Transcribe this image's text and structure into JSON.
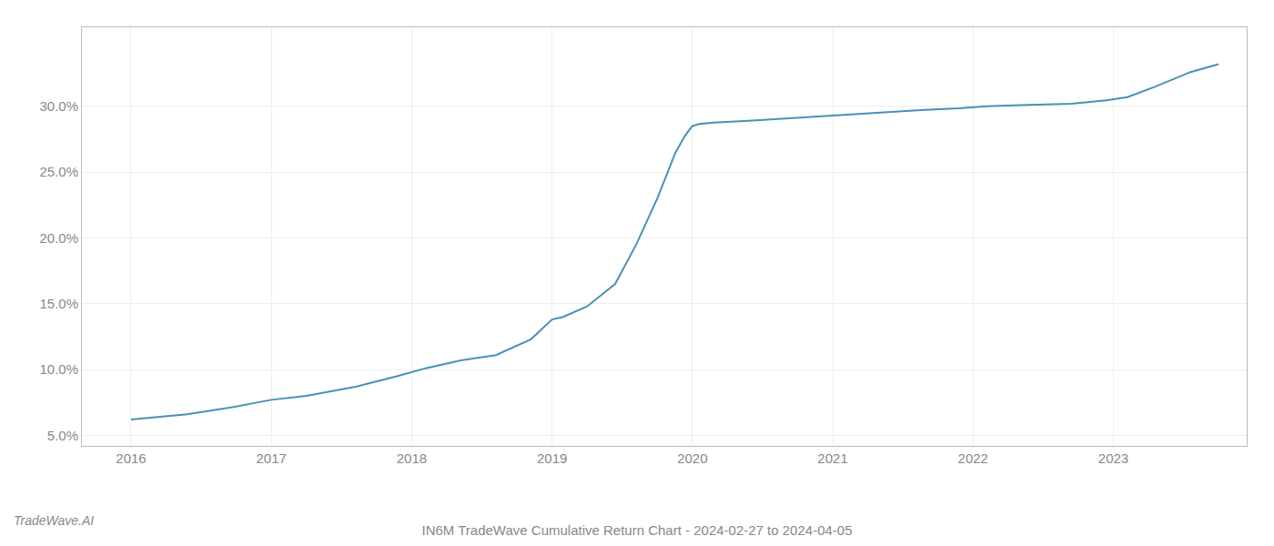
{
  "chart_data": {
    "type": "line",
    "title": "IN6M TradeWave Cumulative Return Chart - 2024-02-27 to 2024-04-05",
    "annotations": [
      {
        "text": "TradeWave.AI"
      }
    ],
    "x": [
      2016.0,
      2016.15,
      2016.4,
      2016.7,
      2017.0,
      2017.25,
      2017.6,
      2017.9,
      2018.1,
      2018.35,
      2018.6,
      2018.85,
      2019.0,
      2019.08,
      2019.25,
      2019.45,
      2019.6,
      2019.75,
      2019.88,
      2019.95,
      2020.0,
      2020.05,
      2020.15,
      2020.4,
      2020.7,
      2021.0,
      2021.3,
      2021.6,
      2021.9,
      2022.1,
      2022.4,
      2022.7,
      2022.95,
      2023.1,
      2023.3,
      2023.55,
      2023.75
    ],
    "values": [
      6.2,
      6.35,
      6.6,
      7.1,
      7.7,
      8.0,
      8.7,
      9.5,
      10.1,
      10.7,
      11.1,
      12.3,
      13.8,
      14.0,
      14.8,
      16.5,
      19.5,
      23.0,
      26.5,
      27.8,
      28.5,
      28.65,
      28.75,
      28.9,
      29.1,
      29.3,
      29.55,
      29.7,
      29.85,
      30.0,
      30.1,
      30.2,
      30.45,
      30.7,
      31.5,
      32.6,
      33.2
    ],
    "color": "#4a90b8",
    "xlim": [
      2015.65,
      2023.95
    ],
    "ylim": [
      4.2,
      36.0
    ],
    "xticks": [
      2016,
      2017,
      2018,
      2019,
      2020,
      2021,
      2022,
      2023
    ],
    "yticks": [
      {
        "value": 5.0,
        "label": "5.0%"
      },
      {
        "value": 10.0,
        "label": "10.0%"
      },
      {
        "value": 15.0,
        "label": "15.0%"
      },
      {
        "value": 20.0,
        "label": "20.0%"
      },
      {
        "value": 25.0,
        "label": "25.0%"
      },
      {
        "value": 30.0,
        "label": "30.0%"
      }
    ],
    "grid": true
  }
}
